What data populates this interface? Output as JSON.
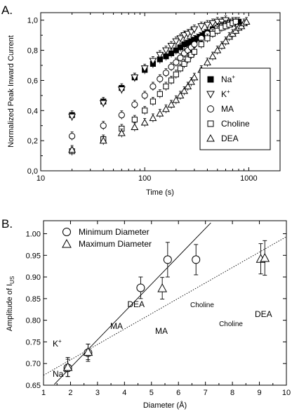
{
  "panels": {
    "a": "A.",
    "b": "B."
  },
  "chart_data": [
    {
      "type": "scatter",
      "xlabel": "Time (s)",
      "ylabel": "Normalized Peak Inward Current",
      "xscale": "log",
      "xlim": [
        10,
        2000
      ],
      "ylim": [
        0.0,
        1.05
      ],
      "xticks": [
        10,
        100,
        1000
      ],
      "xtick_labels": [
        "10",
        "100",
        "1000"
      ],
      "yticks": [
        0.0,
        0.2,
        0.4,
        0.6,
        0.8,
        1.0
      ],
      "ytick_labels": [
        "0,0",
        "0,2",
        "0,4",
        "0,6",
        "0,8",
        "1,0"
      ],
      "legend_position": "right",
      "series": [
        {
          "name": "Na",
          "superscript": "+",
          "marker": "filled-square",
          "x": [
            20,
            40,
            60,
            80,
            100,
            120,
            140,
            160,
            180,
            200,
            220,
            240,
            260,
            280,
            300,
            320,
            340,
            360,
            380,
            400,
            450,
            500,
            550,
            600,
            650,
            700,
            750,
            800
          ],
          "y": [
            0.37,
            0.46,
            0.55,
            0.62,
            0.67,
            0.71,
            0.74,
            0.76,
            0.78,
            0.8,
            0.82,
            0.84,
            0.85,
            0.86,
            0.87,
            0.88,
            0.89,
            0.9,
            0.91,
            0.92,
            0.94,
            0.95,
            0.96,
            0.97,
            0.98,
            0.98,
            0.99,
            0.99
          ]
        },
        {
          "name": "K",
          "superscript": "+",
          "marker": "down-triangle",
          "x": [
            20,
            40,
            60,
            80,
            100,
            120,
            140,
            160,
            180,
            200,
            220,
            240,
            260,
            280,
            300,
            350,
            400,
            450,
            500,
            550,
            600
          ],
          "y": [
            0.36,
            0.45,
            0.54,
            0.62,
            0.68,
            0.73,
            0.77,
            0.8,
            0.83,
            0.86,
            0.88,
            0.9,
            0.91,
            0.92,
            0.94,
            0.96,
            0.97,
            0.98,
            0.99,
            0.99,
            1.0
          ]
        },
        {
          "name": "MA",
          "superscript": "",
          "marker": "open-circle",
          "x": [
            20,
            40,
            60,
            80,
            100,
            120,
            140,
            160,
            180,
            200,
            220,
            240,
            260,
            280,
            300,
            350,
            400,
            450,
            500,
            550,
            600,
            650,
            700
          ],
          "y": [
            0.23,
            0.3,
            0.37,
            0.44,
            0.5,
            0.56,
            0.61,
            0.65,
            0.69,
            0.72,
            0.75,
            0.78,
            0.8,
            0.82,
            0.84,
            0.88,
            0.91,
            0.93,
            0.95,
            0.96,
            0.97,
            0.98,
            0.99
          ]
        },
        {
          "name": "Choline",
          "superscript": "",
          "marker": "open-square",
          "x": [
            20,
            40,
            60,
            80,
            100,
            120,
            140,
            160,
            180,
            200,
            220,
            240,
            260,
            280,
            300,
            350,
            400,
            450,
            500,
            550,
            600,
            650,
            700,
            750
          ],
          "y": [
            0.13,
            0.21,
            0.28,
            0.34,
            0.4,
            0.46,
            0.51,
            0.56,
            0.6,
            0.64,
            0.68,
            0.71,
            0.74,
            0.77,
            0.79,
            0.84,
            0.88,
            0.91,
            0.93,
            0.95,
            0.96,
            0.97,
            0.98,
            0.99
          ]
        },
        {
          "name": "DEA",
          "superscript": "",
          "marker": "open-triangle",
          "x": [
            20,
            40,
            60,
            80,
            100,
            120,
            140,
            160,
            180,
            200,
            220,
            240,
            260,
            280,
            300,
            350,
            400,
            450,
            500,
            550,
            600,
            650,
            700,
            750,
            800,
            850,
            900,
            950
          ],
          "y": [
            0.14,
            0.2,
            0.25,
            0.29,
            0.32,
            0.35,
            0.38,
            0.41,
            0.44,
            0.47,
            0.5,
            0.53,
            0.56,
            0.59,
            0.62,
            0.67,
            0.72,
            0.76,
            0.8,
            0.83,
            0.86,
            0.89,
            0.91,
            0.93,
            0.95,
            0.96,
            0.98,
            0.99
          ]
        }
      ]
    },
    {
      "type": "scatter",
      "xlabel": "Diameter (Å)",
      "ylabel": "Amplitude of I",
      "ylabel_subscript": "US",
      "xlim": [
        1,
        10
      ],
      "ylim": [
        0.65,
        1.03
      ],
      "xticks": [
        1,
        2,
        3,
        4,
        5,
        6,
        7,
        8,
        9,
        10
      ],
      "xtick_labels": [
        "1",
        "2",
        "3",
        "4",
        "5",
        "6",
        "7",
        "8",
        "9",
        "10"
      ],
      "yticks": [
        0.65,
        0.7,
        0.75,
        0.8,
        0.85,
        0.9,
        0.95,
        1.0
      ],
      "ytick_labels": [
        "0.65",
        "0.70",
        "0.75",
        "0.80",
        "0.85",
        "0.90",
        "0.95",
        "1.00"
      ],
      "legend_position": "top-left",
      "series": [
        {
          "name": "Minimum Diameter",
          "marker": "open-circle",
          "fit": "solid",
          "points": [
            {
              "x": 1.9,
              "y": 0.69,
              "err": 0.02
            },
            {
              "x": 2.65,
              "y": 0.725,
              "err": 0.02
            },
            {
              "x": 4.6,
              "y": 0.875,
              "err": 0.025
            },
            {
              "x": 5.6,
              "y": 0.94,
              "err": 0.04
            },
            {
              "x": 6.65,
              "y": 0.94,
              "err": 0.035
            }
          ],
          "fit_line": {
            "x": [
              1.4,
              7.2
            ],
            "y": [
              0.652,
              1.025
            ]
          }
        },
        {
          "name": "Maximum Diameter",
          "marker": "open-triangle",
          "fit": "dotted",
          "points": [
            {
              "x": 1.9,
              "y": 0.692,
              "err": 0.022
            },
            {
              "x": 2.65,
              "y": 0.727,
              "err": 0.018
            },
            {
              "x": 5.4,
              "y": 0.874,
              "err": 0.025
            },
            {
              "x": 9.05,
              "y": 0.942,
              "err": 0.035
            },
            {
              "x": 9.2,
              "y": 0.944,
              "err": 0.04
            }
          ],
          "fit_line": {
            "x": [
              1.0,
              10.0
            ],
            "y": [
              0.673,
              0.993
            ]
          }
        }
      ],
      "annotations": [
        {
          "text": "K",
          "sup": "+"
        },
        {
          "text": "Na",
          "sup": "+"
        },
        {
          "text": "MA"
        },
        {
          "text": "DEA"
        },
        {
          "text": "Choline"
        },
        {
          "text": "MA"
        },
        {
          "text": "Choline"
        },
        {
          "text": "DEA"
        }
      ]
    }
  ]
}
